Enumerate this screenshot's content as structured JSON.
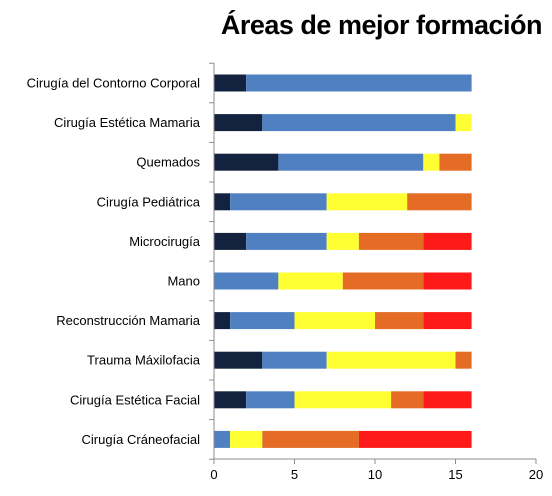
{
  "chart_data": {
    "type": "bar",
    "orientation": "horizontal",
    "stacked": true,
    "title": "Áreas de mejor formación",
    "categories": [
      "Cirugía del Contorno Corporal",
      "Cirugía Estética Mamaria",
      "Quemados",
      "Cirugía Pediátrica",
      "Microcirugía",
      "Mano",
      "Reconstrucción Mamaria",
      "Trauma Máxilofacia",
      "Cirugía Estética Facial",
      "Cirugía Cráneofacial"
    ],
    "series": [
      {
        "color": "#13233f",
        "values": [
          2,
          3,
          4,
          1,
          2,
          0,
          1,
          3,
          2,
          0
        ]
      },
      {
        "color": "#4f81c2",
        "values": [
          14,
          12,
          9,
          6,
          5,
          4,
          4,
          4,
          3,
          1
        ]
      },
      {
        "color": "#ffff33",
        "values": [
          0,
          1,
          1,
          5,
          2,
          4,
          5,
          8,
          6,
          2
        ]
      },
      {
        "color": "#e46c24",
        "values": [
          0,
          0,
          2,
          4,
          4,
          5,
          3,
          1,
          2,
          6
        ]
      },
      {
        "color": "#ff1a1a",
        "values": [
          0,
          0,
          0,
          0,
          3,
          3,
          3,
          0,
          3,
          7
        ]
      }
    ],
    "xlim": [
      0,
      20
    ],
    "xticks": [
      0,
      5,
      10,
      15,
      20
    ],
    "grid": false,
    "legend": "none"
  }
}
